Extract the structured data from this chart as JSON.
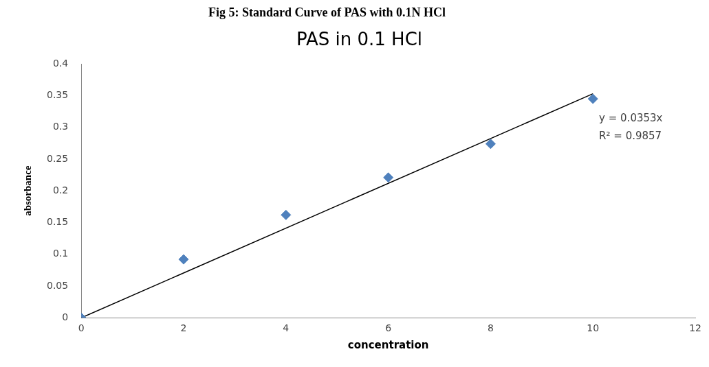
{
  "chart_data": {
    "type": "scatter",
    "title": "PAS in 0.1 HCl",
    "xlabel": "concentration",
    "ylabel": "absorbance",
    "xlim": [
      0,
      12
    ],
    "xticks": [
      0,
      2,
      4,
      6,
      8,
      10,
      12
    ],
    "ylim": [
      0,
      0.4
    ],
    "yticks": [
      0,
      0.05,
      0.1,
      0.15,
      0.2,
      0.25,
      0.3,
      0.35,
      0.4
    ],
    "grid": false,
    "legend": false,
    "marker": "diamond",
    "series": [
      {
        "color": "#4f81bd",
        "x": [
          0,
          2,
          4,
          6,
          8,
          10
        ],
        "values": [
          0,
          0.092,
          0.162,
          0.221,
          0.274,
          0.345
        ]
      },
      {
        "type": "line",
        "color": "#000000",
        "marker": "none",
        "x": [
          0,
          10
        ],
        "values": [
          0,
          0.353
        ]
      }
    ],
    "annotations": [
      "Fig 5: Standard Curve of PAS with 0.1N HCl",
      "y = 0.0353x",
      "R² = 0.9857"
    ]
  }
}
